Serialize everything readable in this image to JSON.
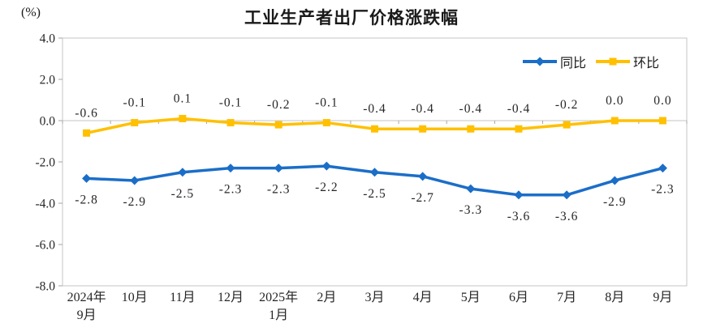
{
  "chart": {
    "title": "工业生产者出厂价格涨跌幅",
    "unit_label": "(%)",
    "legend": [
      {
        "label": "同比",
        "color": "#1b6ec8",
        "marker": "diamond"
      },
      {
        "label": "环比",
        "color": "#ffc000",
        "marker": "square"
      }
    ]
  },
  "chart_data": {
    "type": "line",
    "title": "工业生产者出厂价格涨跌幅",
    "ylabel": "(%)",
    "xlabel": "",
    "categories": [
      [
        "2024年",
        "9月"
      ],
      [
        "10月"
      ],
      [
        "11月"
      ],
      [
        "12月"
      ],
      [
        "2025年",
        "1月"
      ],
      [
        "2月"
      ],
      [
        "3月"
      ],
      [
        "4月"
      ],
      [
        "5月"
      ],
      [
        "6月"
      ],
      [
        "7月"
      ],
      [
        "8月"
      ],
      [
        "9月"
      ]
    ],
    "series": [
      {
        "name": "同比",
        "color": "#1b6ec8",
        "marker": "diamond",
        "label_position": "below",
        "values": [
          -2.8,
          -2.9,
          -2.5,
          -2.3,
          -2.3,
          -2.2,
          -2.5,
          -2.7,
          -3.3,
          -3.6,
          -3.6,
          -2.9,
          -2.3
        ]
      },
      {
        "name": "环比",
        "color": "#ffc000",
        "marker": "square",
        "label_position": "above",
        "values": [
          -0.6,
          -0.1,
          0.1,
          -0.1,
          -0.2,
          -0.1,
          -0.4,
          -0.4,
          -0.4,
          -0.4,
          -0.2,
          0.0,
          0.0
        ]
      }
    ],
    "ylim": [
      -8.0,
      4.0
    ],
    "ytick_step": 2.0,
    "ytick_labels": [
      "4.0",
      "2.0",
      "0.0",
      "-2.0",
      "-4.0",
      "-6.0",
      "-8.0"
    ],
    "grid": false,
    "data_labels": true,
    "legend_position": "top-right",
    "colors": {
      "axis_border": "#c6c6c6",
      "tick": "#a6a6a6",
      "text": "#262626"
    }
  }
}
